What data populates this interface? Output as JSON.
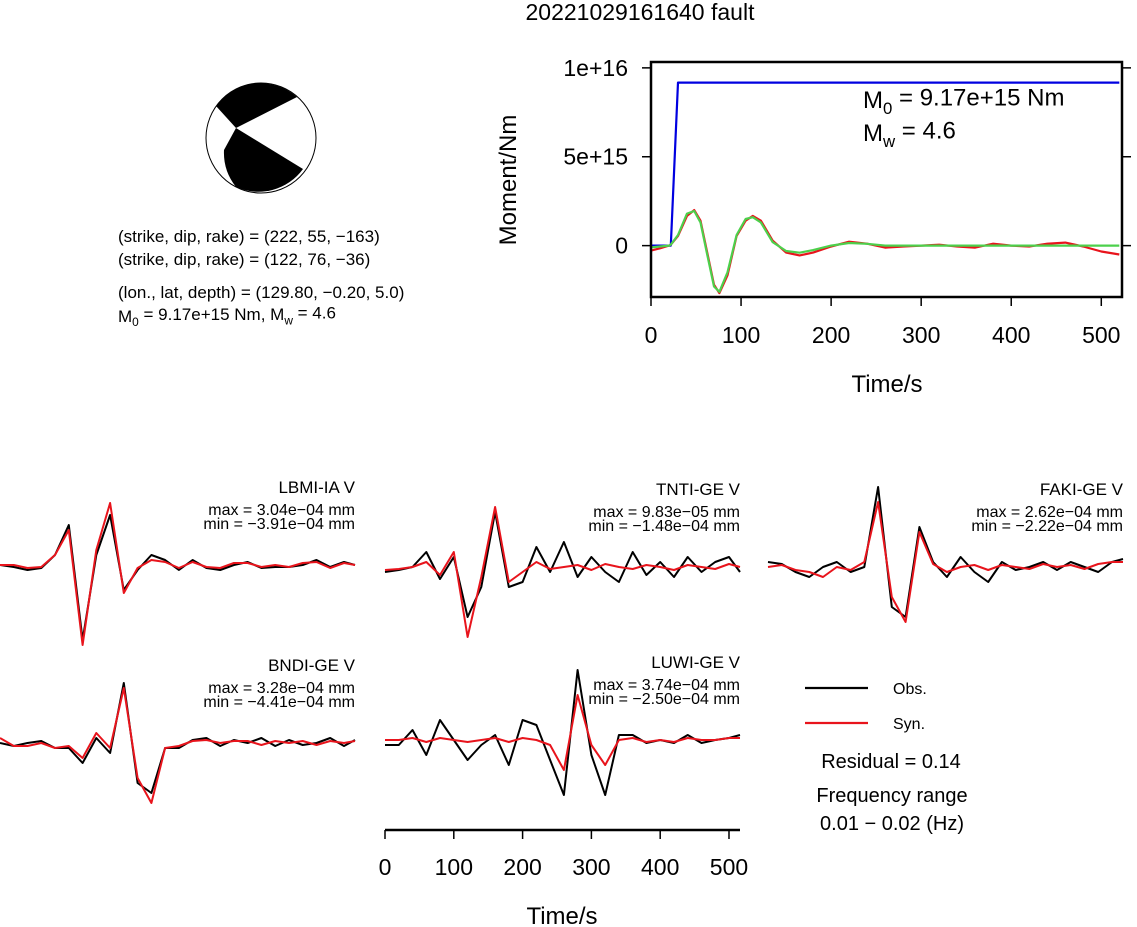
{
  "mechanism": {
    "lines": [
      "(strike, dip, rake) = (222, 55, −163)",
      "(strike, dip, rake) = (122, 76, −36)",
      "(lon., lat, depth) = (129.80, −0.20, 5.0)"
    ],
    "moment": [
      {
        "text": "M"
      },
      {
        "text": "0",
        "sub": true
      },
      {
        "text": " = 9.17e+15 Nm, M"
      },
      {
        "text": "w",
        "sub": true
      },
      {
        "text": " = 4.6"
      }
    ]
  },
  "chart_data": [
    {
      "type": "line",
      "title": "20221029161640 fault",
      "xlabel": "Time/s",
      "ylabel": "Moment/Nm",
      "x": [
        0,
        10,
        20,
        22,
        30,
        40,
        48,
        55,
        62,
        70,
        76,
        85,
        95,
        105,
        113,
        122,
        135,
        150,
        165,
        180,
        200,
        220,
        240,
        260,
        280,
        300,
        320,
        340,
        360,
        380,
        400,
        420,
        440,
        460,
        480,
        500,
        520
      ],
      "xlim": [
        0,
        523
      ],
      "xticks": [
        0,
        100,
        200,
        300,
        400,
        500
      ],
      "ylim": [
        -2890000000000000.0,
        1.033e+16
      ],
      "yticks": [
        0,
        {
          "value": 5000000000000000.0,
          "label": "5e+15"
        },
        {
          "value": 1e+16,
          "label": "1e+16"
        }
      ],
      "series": [
        {
          "color": "#0000e0",
          "values": [
            0,
            0,
            0,
            0,
            9170000000000000.0,
            9170000000000000.0,
            9170000000000000.0,
            9170000000000000.0,
            9170000000000000.0,
            9170000000000000.0,
            9170000000000000.0,
            9170000000000000.0,
            9170000000000000.0,
            9170000000000000.0,
            9170000000000000.0,
            9170000000000000.0,
            9170000000000000.0,
            9170000000000000.0,
            9170000000000000.0,
            9170000000000000.0,
            9170000000000000.0,
            9170000000000000.0,
            9170000000000000.0,
            9170000000000000.0,
            9170000000000000.0,
            9170000000000000.0,
            9170000000000000.0,
            9170000000000000.0,
            9170000000000000.0,
            9170000000000000.0,
            9170000000000000.0,
            9170000000000000.0,
            9170000000000000.0,
            9170000000000000.0,
            9170000000000000.0,
            9170000000000000.0,
            9170000000000000.0
          ]
        },
        {
          "color": "#e8141c",
          "values": [
            -280000000000000.0,
            -150000000000000.0,
            0,
            50000000000000.0,
            550000000000000.0,
            1670000000000000.0,
            2000000000000000.0,
            1400000000000000.0,
            -280000000000000.0,
            -2200000000000000.0,
            -2670000000000000.0,
            -1670000000000000.0,
            550000000000000.0,
            1400000000000000.0,
            1670000000000000.0,
            1400000000000000.0,
            280000000000000.0,
            -390000000000000.0,
            -550000000000000.0,
            -390000000000000.0,
            -50000000000000.0,
            220000000000000.0,
            110000000000000.0,
            -110000000000000.0,
            -50000000000000.0,
            0,
            50000000000000.0,
            -50000000000000.0,
            -110000000000000.0,
            110000000000000.0,
            0,
            -50000000000000.0,
            110000000000000.0,
            170000000000000.0,
            -50000000000000.0,
            -330000000000000.0,
            -500000000000000.0
          ]
        },
        {
          "color": "#4cd04c",
          "values": [
            -100000000000000.0,
            -50000000000000.0,
            0,
            50000000000000.0,
            600000000000000.0,
            1800000000000000.0,
            1950000000000000.0,
            1300000000000000.0,
            -400000000000000.0,
            -2300000000000000.0,
            -2600000000000000.0,
            -1500000000000000.0,
            600000000000000.0,
            1500000000000000.0,
            1600000000000000.0,
            1300000000000000.0,
            200000000000000.0,
            -300000000000000.0,
            -400000000000000.0,
            -250000000000000.0,
            0,
            150000000000000.0,
            100000000000000.0,
            0,
            0,
            0,
            0,
            0,
            0,
            0,
            0,
            0,
            0,
            0,
            0,
            0,
            0
          ]
        }
      ],
      "annotations": [
        [
          {
            "text": "M"
          },
          {
            "text": "0",
            "sub": true
          },
          {
            "text": " = 9.17e+15 Nm"
          }
        ],
        [
          {
            "text": "M"
          },
          {
            "text": "w",
            "sub": true
          },
          {
            "text": " = 4.6"
          }
        ]
      ]
    },
    {
      "type": "waveforms",
      "xlabel": "Time/s",
      "x": [
        0,
        20,
        40,
        60,
        80,
        100,
        120,
        140,
        160,
        180,
        200,
        220,
        240,
        260,
        280,
        300,
        320,
        340,
        360,
        380,
        400,
        420,
        440,
        460,
        480,
        500,
        516
      ],
      "xlim": [
        0,
        516
      ],
      "xticks": [
        0,
        100,
        200,
        300,
        400,
        500
      ],
      "legend": [
        {
          "name": "Obs.",
          "color": "#000000"
        },
        {
          "name": "Syn.",
          "color": "#e8141c"
        }
      ],
      "stations": [
        {
          "name": "LBMI-IA V",
          "max": "max = 3.04e−04 mm",
          "min": "min = −3.91e−04 mm",
          "obs": [
            0,
            -2,
            -5,
            -3,
            10,
            40,
            -75,
            10,
            50,
            -25,
            -5,
            10,
            5,
            -5,
            5,
            -3,
            -5,
            0,
            3,
            -3,
            -2,
            -2,
            0,
            5,
            -2,
            3,
            0
          ],
          "syn": [
            0,
            0,
            -3,
            -2,
            10,
            35,
            -80,
            15,
            62,
            -28,
            -3,
            5,
            3,
            -3,
            3,
            -2,
            -3,
            2,
            2,
            -2,
            0,
            -2,
            2,
            3,
            -3,
            2,
            0
          ]
        },
        {
          "name": "TNTI-GE V",
          "max": "max = 9.83e−05 mm",
          "min": "min = −1.48e−04 mm",
          "obs": [
            -5,
            -3,
            0,
            15,
            -12,
            10,
            -50,
            -20,
            55,
            -20,
            -15,
            20,
            -5,
            25,
            -10,
            10,
            -5,
            -15,
            15,
            -8,
            5,
            -10,
            10,
            -5,
            5,
            10,
            -5
          ],
          "syn": [
            -3,
            -2,
            0,
            5,
            -8,
            15,
            -70,
            -10,
            60,
            -15,
            -5,
            5,
            -2,
            0,
            2,
            -3,
            3,
            0,
            -2,
            2,
            0,
            -3,
            2,
            0,
            -2,
            3,
            0
          ]
        },
        {
          "name": "FAKI-GE V",
          "max": "max = 2.62e−04 mm",
          "min": "min = −2.22e−04 mm",
          "obs": [
            5,
            3,
            -5,
            -10,
            0,
            5,
            -5,
            0,
            80,
            -40,
            -50,
            40,
            5,
            -10,
            10,
            -5,
            -15,
            5,
            -3,
            0,
            5,
            -3,
            5,
            0,
            -5,
            5,
            8
          ],
          "syn": [
            0,
            2,
            -3,
            -5,
            -10,
            0,
            -3,
            5,
            65,
            -30,
            -55,
            35,
            3,
            -5,
            0,
            2,
            -3,
            2,
            0,
            -2,
            3,
            0,
            2,
            -2,
            3,
            5,
            5
          ]
        },
        {
          "name": "BNDI-GE V",
          "max": "max = 3.28e−04 mm",
          "min": "min = −4.41e−04 mm",
          "obs": [
            0,
            -3,
            0,
            2,
            -5,
            -5,
            -20,
            5,
            -10,
            60,
            -40,
            -50,
            -5,
            -5,
            3,
            5,
            -3,
            3,
            0,
            5,
            -3,
            3,
            -2,
            0,
            5,
            -3,
            3
          ],
          "syn": [
            5,
            -3,
            -3,
            0,
            -5,
            -3,
            -15,
            10,
            -5,
            55,
            -35,
            -60,
            -5,
            -3,
            2,
            3,
            0,
            2,
            2,
            -2,
            2,
            0,
            2,
            -2,
            2,
            0,
            2
          ]
        },
        {
          "name": "LUWI-GE V",
          "max": "max = 3.74e−04 mm",
          "min": "min = −2.50e−04 mm",
          "obs": [
            -5,
            -5,
            10,
            -15,
            20,
            0,
            -20,
            -5,
            5,
            -25,
            20,
            15,
            -20,
            -55,
            70,
            -15,
            -55,
            5,
            5,
            -3,
            0,
            -3,
            5,
            -3,
            0,
            2,
            5
          ],
          "syn": [
            0,
            0,
            2,
            -2,
            2,
            0,
            -2,
            0,
            2,
            -2,
            2,
            0,
            -5,
            -30,
            45,
            -5,
            -25,
            0,
            2,
            -2,
            0,
            -2,
            2,
            0,
            0,
            2,
            2
          ]
        }
      ],
      "residual": "Residual = 0.14",
      "frequency": [
        "Frequency range",
        "0.01 − 0.02 (Hz)"
      ]
    }
  ]
}
